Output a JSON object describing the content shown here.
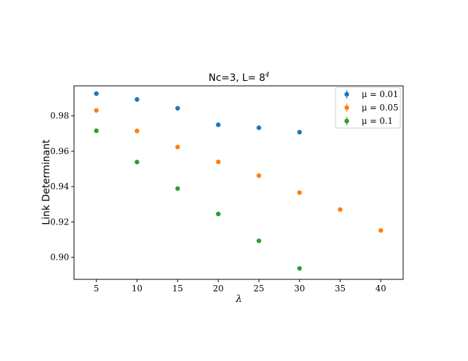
{
  "chart_data": {
    "type": "scatter",
    "title": "Nc=3, L= 8",
    "title_superscript": "4",
    "xlabel": "λ",
    "ylabel": "Link Determinant",
    "xlim": [
      2.25,
      42.75
    ],
    "ylim": [
      0.8875,
      0.997
    ],
    "xticks": [
      5,
      10,
      15,
      20,
      25,
      30,
      35,
      40
    ],
    "xtick_labels": [
      "5",
      "10",
      "15",
      "20",
      "25",
      "30",
      "35",
      "40"
    ],
    "yticks": [
      0.9,
      0.92,
      0.94,
      0.96,
      0.98
    ],
    "ytick_labels": [
      "0.90",
      "0.92",
      "0.94",
      "0.96",
      "0.98"
    ],
    "grid": false,
    "legend_position": "top-right",
    "series": [
      {
        "name": "μ = 0.01",
        "color": "#1f77b4",
        "x": [
          5,
          10,
          15,
          20,
          25,
          30
        ],
        "y": [
          0.9926,
          0.9893,
          0.9843,
          0.975,
          0.9733,
          0.9708
        ]
      },
      {
        "name": "μ = 0.05",
        "color": "#ff7f0e",
        "x": [
          5,
          10,
          15,
          20,
          25,
          30,
          35,
          40
        ],
        "y": [
          0.9831,
          0.9715,
          0.9624,
          0.954,
          0.9462,
          0.9366,
          0.927,
          0.9152
        ]
      },
      {
        "name": "μ = 0.1",
        "color": "#2ca02c",
        "x": [
          5,
          10,
          15,
          20,
          25,
          30
        ],
        "y": [
          0.9716,
          0.9539,
          0.9389,
          0.9245,
          0.9093,
          0.8937
        ]
      }
    ]
  }
}
